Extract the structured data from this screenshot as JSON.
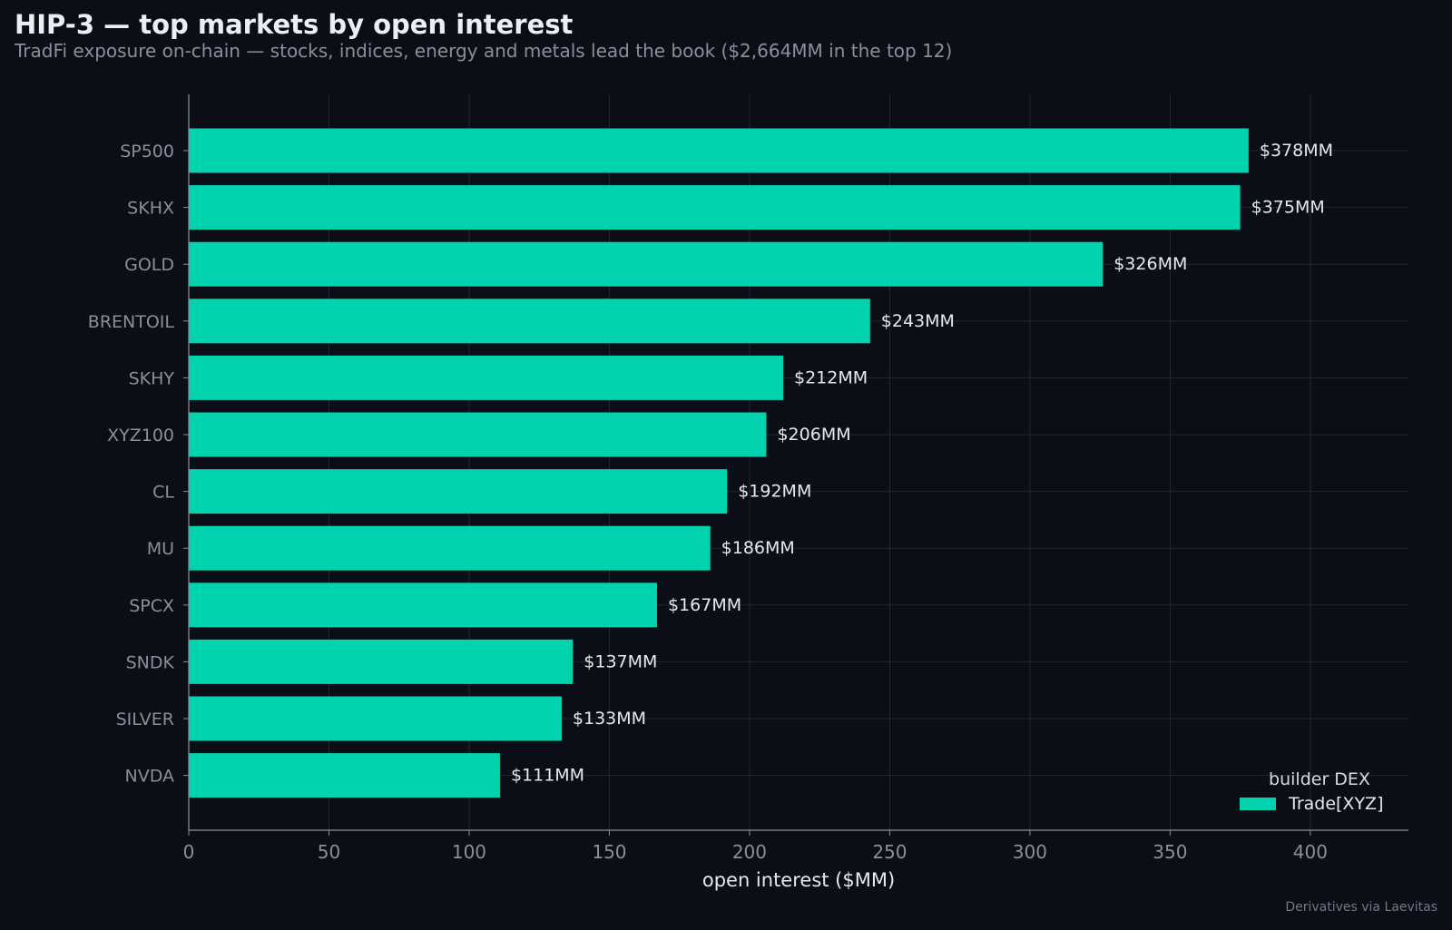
{
  "chart_data": {
    "type": "bar",
    "orientation": "horizontal",
    "title": "HIP-3 — top markets by open interest",
    "subtitle": "TradFi exposure on-chain — stocks, indices, energy and metals lead the book ($2,664MM in the top 12)",
    "xlabel": "open interest ($MM)",
    "ylabel": "",
    "xlim": [
      0,
      435
    ],
    "xticks": [
      0,
      50,
      100,
      150,
      200,
      250,
      300,
      350,
      400
    ],
    "categories": [
      "SP500",
      "SKHX",
      "GOLD",
      "BRENTOIL",
      "SKHY",
      "XYZ100",
      "CL",
      "MU",
      "SPCX",
      "SNDK",
      "SILVER",
      "NVDA"
    ],
    "series": [
      {
        "name": "Trade[XYZ]",
        "color": "#00d3ad",
        "values": [
          378,
          375,
          326,
          243,
          212,
          206,
          192,
          186,
          167,
          137,
          133,
          111
        ],
        "data_labels": [
          "$378MM",
          "$375MM",
          "$326MM",
          "$243MM",
          "$212MM",
          "$206MM",
          "$192MM",
          "$186MM",
          "$167MM",
          "$137MM",
          "$133MM",
          "$111MM"
        ]
      }
    ],
    "legend": {
      "title": "builder DEX",
      "placement": "bottom-right"
    },
    "grid": true,
    "credit": "Derivatives via Laevitas"
  },
  "colors": {
    "background": "#0b0e16",
    "bar": "#00d3ad",
    "grid": "#232731",
    "axis": "#8a8f9a",
    "tick_label": "#8a8f9a",
    "data_label": "#e6e8ec"
  }
}
